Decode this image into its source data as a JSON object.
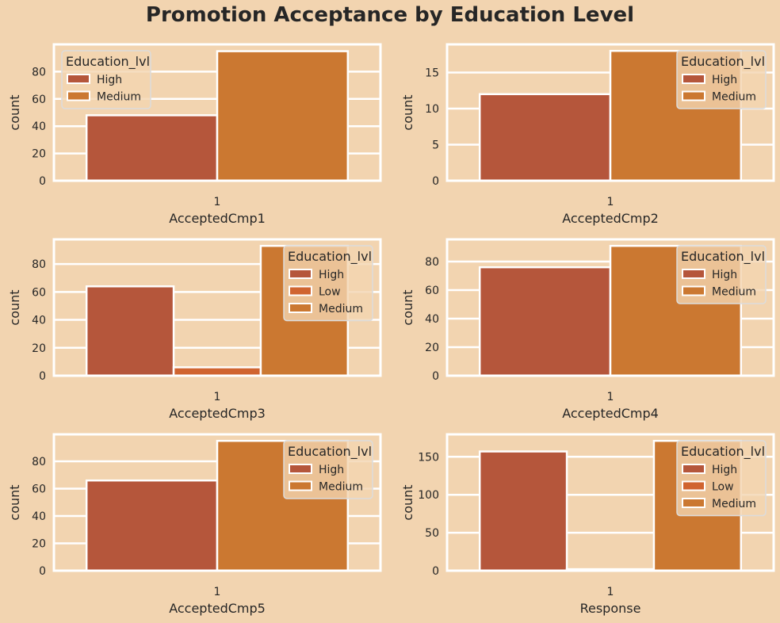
{
  "figure": {
    "title": "Promotion Acceptance by Education Level",
    "background": "#f2d4b0",
    "colors": {
      "High": "#b5563b",
      "Low": "#d06430",
      "Medium": "#cb7831"
    }
  },
  "chart_data": [
    {
      "type": "bar",
      "categories": [
        "1"
      ],
      "series": [
        {
          "name": "High",
          "values": [
            48
          ]
        },
        {
          "name": "Medium",
          "values": [
            95
          ]
        }
      ],
      "xlabel": "AcceptedCmp1",
      "ylabel": "count",
      "ylim": [
        0,
        100
      ],
      "yticks": [
        0,
        20,
        40,
        60,
        80
      ],
      "legend_title": "Education_lvl",
      "legend_loc": "upper-left",
      "grid": true
    },
    {
      "type": "bar",
      "categories": [
        "1"
      ],
      "series": [
        {
          "name": "High",
          "values": [
            12
          ]
        },
        {
          "name": "Medium",
          "values": [
            18
          ]
        }
      ],
      "xlabel": "AcceptedCmp2",
      "ylabel": "count",
      "ylim": [
        0,
        18.9
      ],
      "yticks": [
        0,
        5,
        10,
        15
      ],
      "legend_title": "Education_lvl",
      "legend_loc": "upper-right",
      "grid": true
    },
    {
      "type": "bar",
      "categories": [
        "1"
      ],
      "series": [
        {
          "name": "High",
          "values": [
            64
          ]
        },
        {
          "name": "Low",
          "values": [
            6
          ]
        },
        {
          "name": "Medium",
          "values": [
            93
          ]
        }
      ],
      "xlabel": "AcceptedCmp3",
      "ylabel": "count",
      "ylim": [
        0,
        97.65
      ],
      "yticks": [
        0,
        20,
        40,
        60,
        80
      ],
      "legend_title": "Education_lvl",
      "legend_loc": "upper-right",
      "grid": true
    },
    {
      "type": "bar",
      "categories": [
        "1"
      ],
      "series": [
        {
          "name": "High",
          "values": [
            76
          ]
        },
        {
          "name": "Medium",
          "values": [
            91
          ]
        }
      ],
      "xlabel": "AcceptedCmp4",
      "ylabel": "count",
      "ylim": [
        0,
        95.55
      ],
      "yticks": [
        0,
        20,
        40,
        60,
        80
      ],
      "legend_title": "Education_lvl",
      "legend_loc": "upper-right",
      "grid": true
    },
    {
      "type": "bar",
      "categories": [
        "1"
      ],
      "series": [
        {
          "name": "High",
          "values": [
            66
          ]
        },
        {
          "name": "Medium",
          "values": [
            95
          ]
        }
      ],
      "xlabel": "AcceptedCmp5",
      "ylabel": "count",
      "ylim": [
        0,
        99.75
      ],
      "yticks": [
        0,
        20,
        40,
        60,
        80
      ],
      "legend_title": "Education_lvl",
      "legend_loc": "upper-right",
      "grid": true
    },
    {
      "type": "bar",
      "categories": [
        "1"
      ],
      "series": [
        {
          "name": "High",
          "values": [
            157
          ]
        },
        {
          "name": "Low",
          "values": [
            2
          ]
        },
        {
          "name": "Medium",
          "values": [
            171
          ]
        }
      ],
      "xlabel": "Response",
      "ylabel": "count",
      "ylim": [
        0,
        179.55
      ],
      "yticks": [
        0,
        50,
        100,
        150
      ],
      "legend_title": "Education_lvl",
      "legend_loc": "upper-right",
      "grid": true
    }
  ]
}
